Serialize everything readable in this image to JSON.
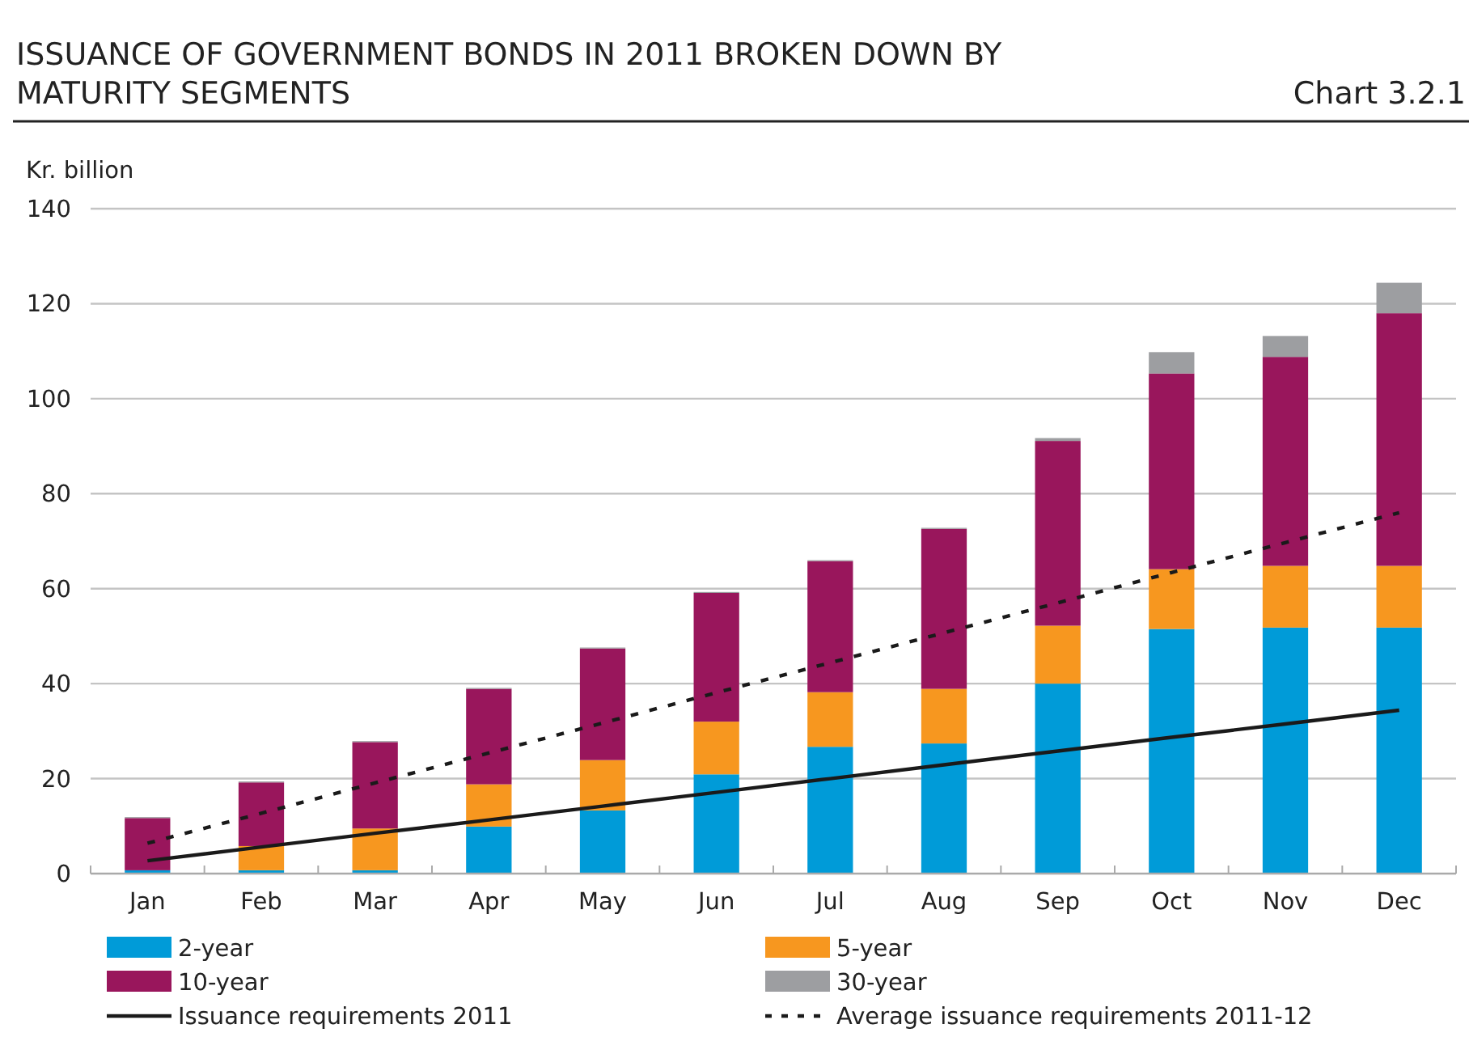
{
  "chart_data": {
    "type": "bar",
    "title": "ISSUANCE OF GOVERNMENT BONDS IN 2011 BROKEN DOWN BY MATURITY SEGMENTS",
    "ylabel": "Kr. billion",
    "annotations": [
      "Chart 3.2.1"
    ],
    "categories": [
      "Jan",
      "Feb",
      "Mar",
      "Apr",
      "May",
      "Jun",
      "Jul",
      "Aug",
      "Sep",
      "Oct",
      "Nov",
      "Dec"
    ],
    "stacked": true,
    "ylim": [
      0,
      140
    ],
    "yticks": [
      0,
      20,
      40,
      60,
      80,
      100,
      120,
      140
    ],
    "grid": "y",
    "legend": "bottom",
    "series": [
      {
        "name": "2-year",
        "color": "#009bd8",
        "values": [
          0.7,
          0.7,
          0.7,
          9.9,
          13.3,
          20.9,
          26.7,
          27.4,
          40,
          51.5,
          51.8,
          51.8
        ]
      },
      {
        "name": "5-year",
        "color": "#f7971f",
        "values": [
          0,
          5.1,
          8.8,
          8.9,
          10.6,
          11.1,
          11.5,
          11.5,
          12.2,
          12.6,
          13,
          13
        ]
      },
      {
        "name": "10-year",
        "color": "#99165c",
        "values": [
          11,
          13.4,
          18.2,
          20.1,
          23.5,
          27.1,
          27.6,
          33.7,
          38.9,
          41.2,
          44,
          53.2
        ]
      },
      {
        "name": "30-year",
        "color": "#9d9ea1",
        "values": [
          0.2,
          0.2,
          0.2,
          0.2,
          0.2,
          0.2,
          0.2,
          0.2,
          0.6,
          4.5,
          4.4,
          6.4
        ]
      },
      {
        "name": "Issuance requirements 2011",
        "type": "line",
        "color": "#1a1a1a",
        "line_style": "solid",
        "values": [
          2.7,
          5.6,
          8.5,
          11.3,
          14.2,
          17.1,
          20,
          22.9,
          25.8,
          28.7,
          31.5,
          34.4
        ]
      },
      {
        "name": "Average issuance requirements 2011-12",
        "type": "line",
        "color": "#1a1a1a",
        "line_style": "dashed",
        "values": [
          6.4,
          12.7,
          19.1,
          25.4,
          31.7,
          38.1,
          44.4,
          50.7,
          57,
          63.4,
          69.7,
          76
        ]
      }
    ]
  }
}
